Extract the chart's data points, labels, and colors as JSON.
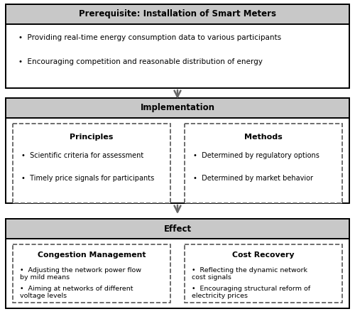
{
  "fig_width": 5.0,
  "fig_height": 4.42,
  "dpi": 100,
  "bg_color": "#ffffff",
  "header_bg": "#c8c8c8",
  "text_color": "#000000",
  "prereq_title": "Prerequisite: Installation of Smart Meters",
  "prereq_bullets": [
    "Providing real-time energy consumption data to various participants",
    "Encouraging competition and reasonable distribution of energy"
  ],
  "impl_title": "Implementation",
  "impl_left_title": "Principles",
  "impl_left_bullets": [
    "Scientific criteria for assessment",
    "Timely price signals for participants"
  ],
  "impl_right_title": "Methods",
  "impl_right_bullets": [
    "Determined by regulatory options",
    "Determined by market behavior"
  ],
  "effect_title": "Effect",
  "effect_left_title": "Congestion Management",
  "effect_left_bullets": [
    "Adjusting the network power flow\nby mild means",
    "Aiming at networks of different\nvoltage levels"
  ],
  "effect_right_title": "Cost Recovery",
  "effect_right_bullets": [
    "Reflecting the dynamic network\ncost signals",
    "Encouraging structural reform of\nelectricity prices"
  ]
}
